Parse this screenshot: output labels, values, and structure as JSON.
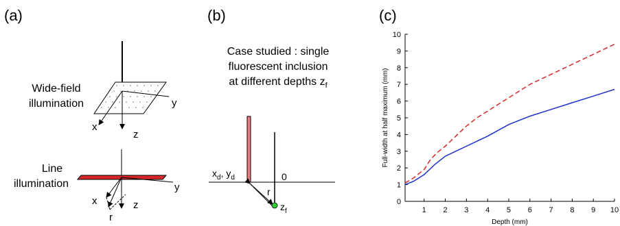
{
  "panels": {
    "a": {
      "label": "(a)",
      "wide_field": {
        "line1": "Wide-field",
        "line2": "illumination"
      },
      "line_illum": {
        "line1": "Line",
        "line2": "illumination"
      },
      "axes": {
        "x": "x",
        "y": "y",
        "z": "z",
        "r": "r"
      }
    },
    "b": {
      "label": "(b)",
      "caption": {
        "line1": "Case studied : single",
        "line2": "fluorescent inclusion",
        "line3_main": "at different depths z",
        "line3_sub": "f"
      },
      "detector_label": {
        "x": "x",
        "x_sub": "d",
        "sep": ", ",
        "y": "y",
        "y_sub": "d"
      },
      "origin": "0",
      "r": "r",
      "zf": {
        "main": "z",
        "sub": "f"
      }
    },
    "c": {
      "label": "(c)"
    }
  },
  "colors": {
    "red_series": "#d62728",
    "blue_series": "#1f2ecf",
    "strip_fill": "#e88080",
    "inclusion": "#33cc33"
  },
  "chart_data": {
    "type": "line",
    "xlabel": "Depth (mm)",
    "ylabel": "Full-width at half maximum (mm)",
    "xlim": [
      0.1,
      10
    ],
    "ylim": [
      0,
      10
    ],
    "xticks": [
      1,
      2,
      3,
      4,
      5,
      6,
      7,
      8,
      9,
      10
    ],
    "yticks": [
      0,
      1,
      2,
      3,
      4,
      5,
      6,
      7,
      8,
      9,
      10
    ],
    "series": [
      {
        "style": "dashed",
        "color": "#d62728",
        "x": [
          0.1,
          0.5,
          1.0,
          1.3,
          1.6,
          2.0,
          2.5,
          3.0,
          3.5,
          4.0,
          5.0,
          6.0,
          7.0,
          8.0,
          9.0,
          10.0
        ],
        "y": [
          1.1,
          1.4,
          1.9,
          2.5,
          2.9,
          3.3,
          3.9,
          4.5,
          5.0,
          5.4,
          6.2,
          7.0,
          7.6,
          8.2,
          8.8,
          9.4
        ]
      },
      {
        "style": "solid",
        "color": "#1f2ecf",
        "x": [
          0.1,
          0.5,
          1.0,
          1.5,
          2.0,
          2.5,
          3.0,
          3.5,
          4.0,
          5.0,
          6.0,
          7.0,
          8.0,
          9.0,
          10.0
        ],
        "y": [
          1.0,
          1.2,
          1.6,
          2.2,
          2.7,
          3.0,
          3.3,
          3.6,
          3.9,
          4.6,
          5.1,
          5.5,
          5.9,
          6.3,
          6.7
        ]
      }
    ]
  }
}
